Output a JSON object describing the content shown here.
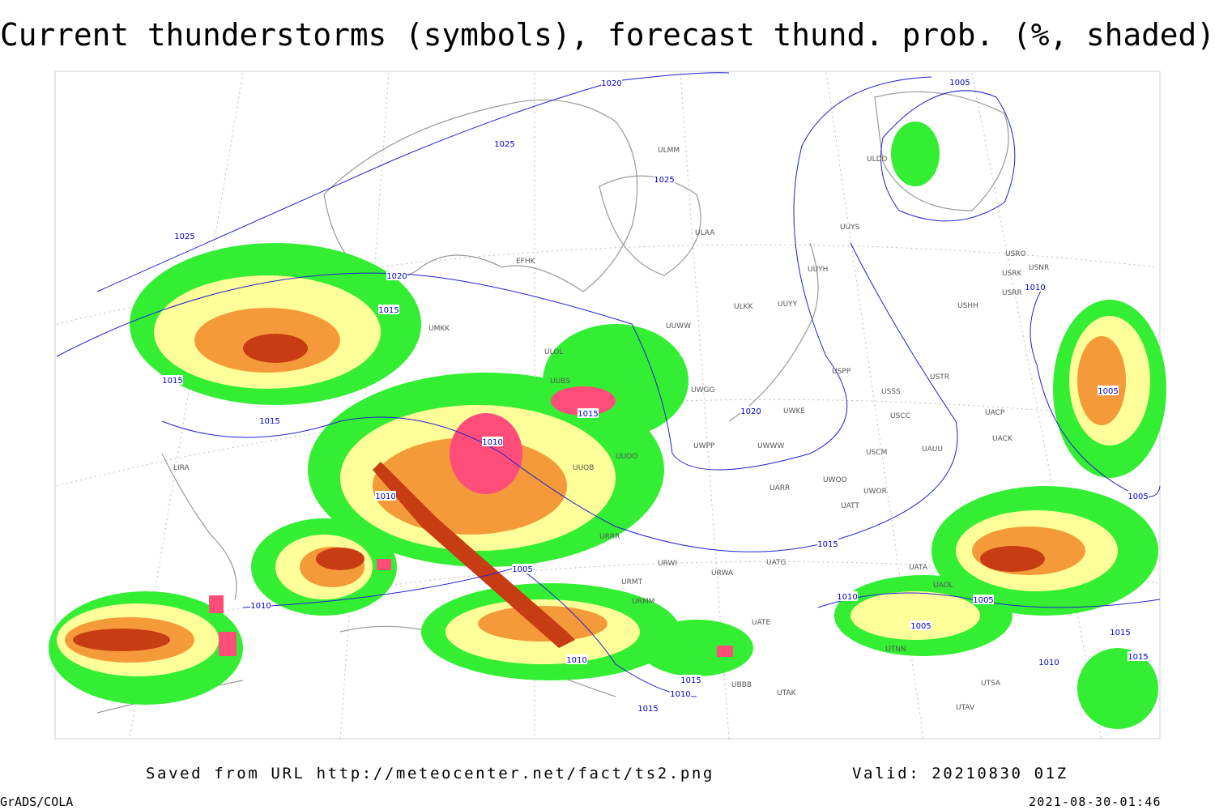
{
  "header": {
    "title": "Current thunderstorms (symbols), forecast thund. prob. (%, shaded)"
  },
  "footer": {
    "source": "Saved from URL http://meteocenter.net/fact/ts2.png",
    "valid": "Valid: 20210830 01Z",
    "software": "GrADS/COLA",
    "timestamp": "2021-08-30-01:46"
  },
  "isobar_labels": [
    "1020",
    "1025",
    "1025",
    "1025",
    "1020",
    "1015",
    "1015",
    "1015",
    "1015",
    "1010",
    "1010",
    "1020",
    "1005",
    "1010",
    "1005",
    "1005",
    "1015",
    "1005",
    "1010",
    "1010",
    "1005",
    "1005",
    "1010",
    "1015",
    "1010",
    "1015",
    "1015",
    "1015",
    "1010"
  ],
  "station_labels": [
    "ULMM",
    "ULAA",
    "UUYS",
    "UUYH",
    "ULKK",
    "UUYY",
    "ULDD",
    "USRO",
    "USRK",
    "USNR",
    "USRR",
    "USHH",
    "USPP",
    "USTR",
    "USSS",
    "USCC",
    "UACP",
    "UACK",
    "UWKE",
    "UWWW",
    "UWPP",
    "USCM",
    "UAUU",
    "UWOO",
    "UWOR",
    "UARR",
    "UATT",
    "UUOB",
    "UUOO",
    "URRR",
    "URWI",
    "UATG",
    "URWA",
    "UATA",
    "UAOL",
    "UTNN",
    "UTSA",
    "UTAV",
    "UBBB",
    "UTAK",
    "LIRA",
    "EFHK",
    "ULOL",
    "UMKK",
    "URMT",
    "URMM",
    "UATE",
    "UUBS",
    "UUWW",
    "UWGG"
  ]
}
